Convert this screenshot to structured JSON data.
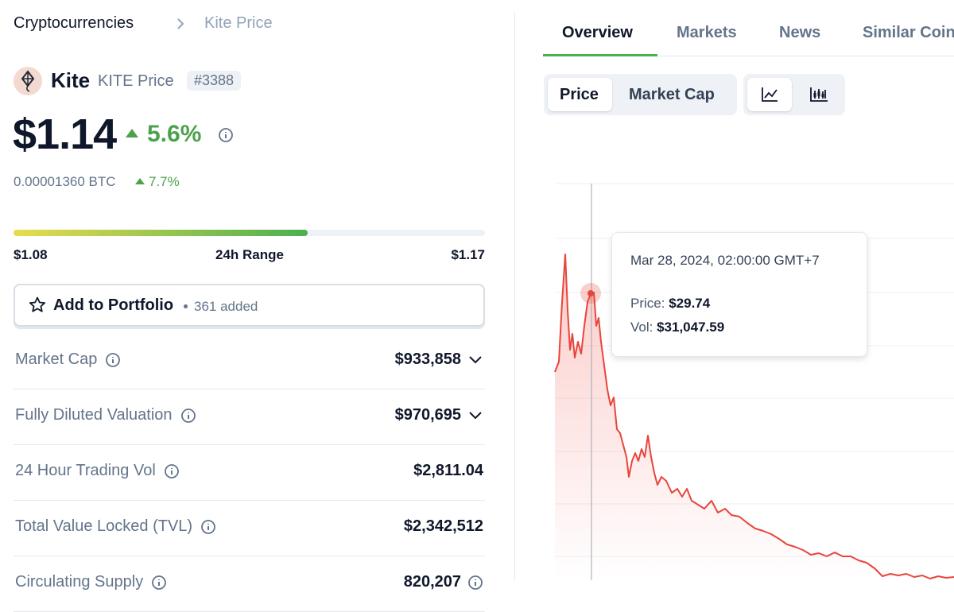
{
  "breadcrumb": {
    "root": "Cryptocurrencies",
    "current": "Kite Price"
  },
  "coin": {
    "name": "Kite",
    "symbol_label": "KITE Price",
    "rank": "#3388"
  },
  "price": {
    "value": "$1.14",
    "change": "5.6%",
    "btc_value": "0.00001360 BTC",
    "btc_change": "7.7%"
  },
  "range": {
    "low": "$1.08",
    "label": "24h Range",
    "high": "$1.17"
  },
  "portfolio": {
    "button": "Add to Portfolio",
    "count": "361 added"
  },
  "stats": [
    {
      "label": "Market Cap",
      "value": "$933,858"
    },
    {
      "label": "Fully Diluted Valuation",
      "value": "$970,695"
    },
    {
      "label": "24 Hour Trading Vol",
      "value": "$2,811.04"
    },
    {
      "label": "Total Value Locked (TVL)",
      "value": "$2,342,512"
    },
    {
      "label": "Circulating Supply",
      "value": "820,207"
    }
  ],
  "tabs": [
    "Overview",
    "Markets",
    "News",
    "Similar Coins"
  ],
  "chart_toggle": [
    "Price",
    "Market Cap"
  ],
  "tooltip": {
    "date": "Mar 28, 2024, 02:00:00 GMT+7",
    "price_label": "Price:",
    "price": "$29.74",
    "vol_label": "Vol:",
    "vol": "$31,047.59"
  }
}
